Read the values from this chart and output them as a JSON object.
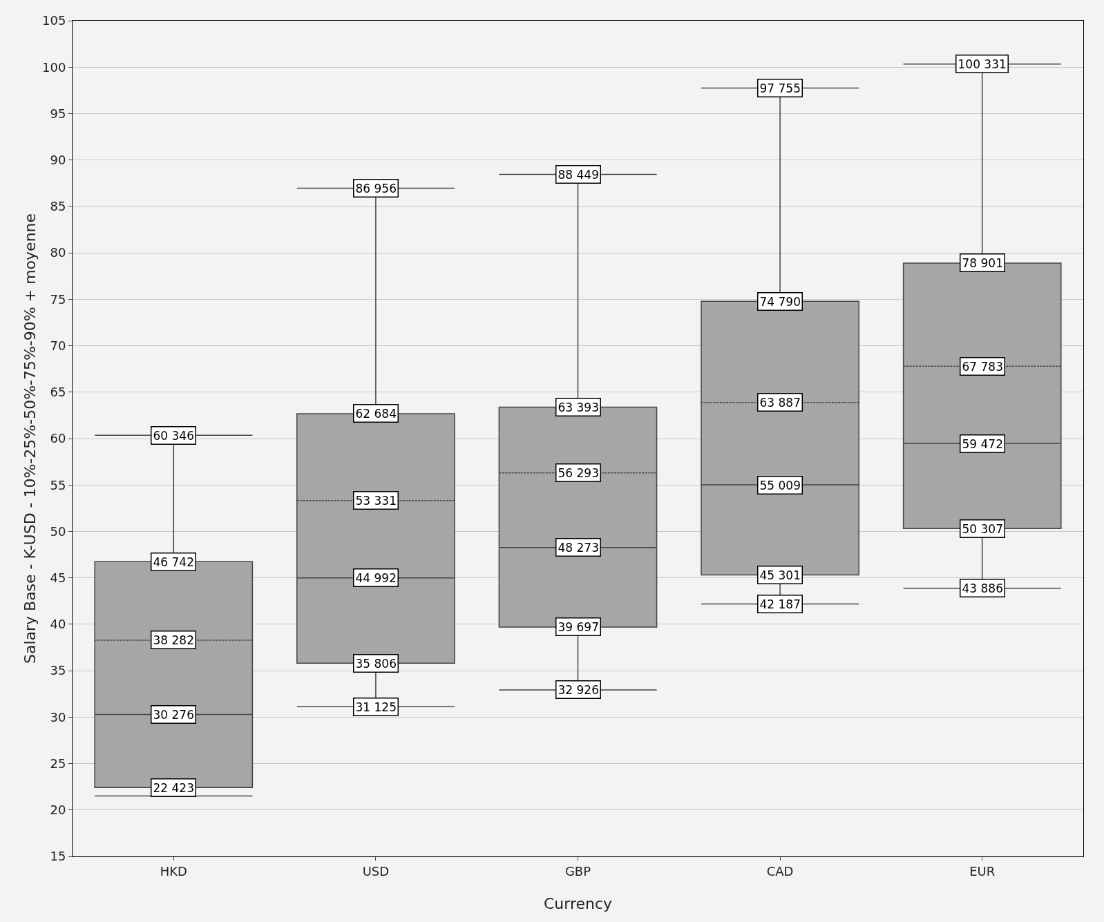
{
  "chart_data": {
    "type": "box",
    "xlabel": "Currency",
    "ylabel": "Salary Base - K-USD - 10%-25%-50%-75%-90% + moyenne",
    "categories": [
      "HKD",
      "USD",
      "GBP",
      "CAD",
      "EUR"
    ],
    "color": "#a6a6a6",
    "boxes": [
      {
        "low": 21.5,
        "q1": 22.423,
        "median": 30.276,
        "q3": 46.742,
        "high": 60.346,
        "mean": 38.282
      },
      {
        "low": 31.125,
        "q1": 35.806,
        "median": 44.992,
        "q3": 62.684,
        "high": 86.956,
        "mean": 53.331
      },
      {
        "low": 32.926,
        "q1": 39.697,
        "median": 48.273,
        "q3": 63.393,
        "high": 88.449,
        "mean": 56.293
      },
      {
        "low": 42.187,
        "q1": 45.301,
        "median": 55.009,
        "q3": 74.79,
        "high": 97.755,
        "mean": 63.887
      },
      {
        "low": 43.886,
        "q1": 50.307,
        "median": 59.472,
        "q3": 78.901,
        "high": 100.331,
        "mean": 67.783
      }
    ],
    "ylim": [
      15,
      105
    ],
    "yticks": [
      15,
      20,
      25,
      30,
      35,
      40,
      45,
      50,
      55,
      60,
      65,
      70,
      75,
      80,
      85,
      90,
      95,
      100,
      105
    ],
    "grid": "y",
    "annotations": [
      {
        "text": "60 346",
        "x": "HKD",
        "y": 60.346
      },
      {
        "text": "46 742",
        "x": "HKD",
        "y": 46.742
      },
      {
        "text": "38 282",
        "x": "HKD",
        "y": 38.282
      },
      {
        "text": "30 276",
        "x": "HKD",
        "y": 30.276
      },
      {
        "text": "22 423",
        "x": "HKD",
        "y": 22.423
      },
      {
        "text": "86 956",
        "x": "USD",
        "y": 86.956
      },
      {
        "text": "62 684",
        "x": "USD",
        "y": 62.684
      },
      {
        "text": "53 331",
        "x": "USD",
        "y": 53.331
      },
      {
        "text": "44 992",
        "x": "USD",
        "y": 44.992
      },
      {
        "text": "35 806",
        "x": "USD",
        "y": 35.806
      },
      {
        "text": "31 125",
        "x": "USD",
        "y": 31.125
      },
      {
        "text": "88 449",
        "x": "GBP",
        "y": 88.449
      },
      {
        "text": "63 393",
        "x": "GBP",
        "y": 63.393
      },
      {
        "text": "56 293",
        "x": "GBP",
        "y": 56.293
      },
      {
        "text": "48 273",
        "x": "GBP",
        "y": 48.273
      },
      {
        "text": "39 697",
        "x": "GBP",
        "y": 39.697
      },
      {
        "text": "32 926",
        "x": "GBP",
        "y": 32.926
      },
      {
        "text": "97 755",
        "x": "CAD",
        "y": 97.755
      },
      {
        "text": "74 790",
        "x": "CAD",
        "y": 74.79
      },
      {
        "text": "63 887",
        "x": "CAD",
        "y": 63.887
      },
      {
        "text": "55 009",
        "x": "CAD",
        "y": 55.009
      },
      {
        "text": "45 301",
        "x": "CAD",
        "y": 45.301
      },
      {
        "text": "42 187",
        "x": "CAD",
        "y": 42.187
      },
      {
        "text": "100 331",
        "x": "EUR",
        "y": 100.331
      },
      {
        "text": "78 901",
        "x": "EUR",
        "y": 78.901
      },
      {
        "text": "67 783",
        "x": "EUR",
        "y": 67.783
      },
      {
        "text": "59 472",
        "x": "EUR",
        "y": 59.472
      },
      {
        "text": "50 307",
        "x": "EUR",
        "y": 50.307
      },
      {
        "text": "43 886",
        "x": "EUR",
        "y": 43.886
      }
    ]
  }
}
